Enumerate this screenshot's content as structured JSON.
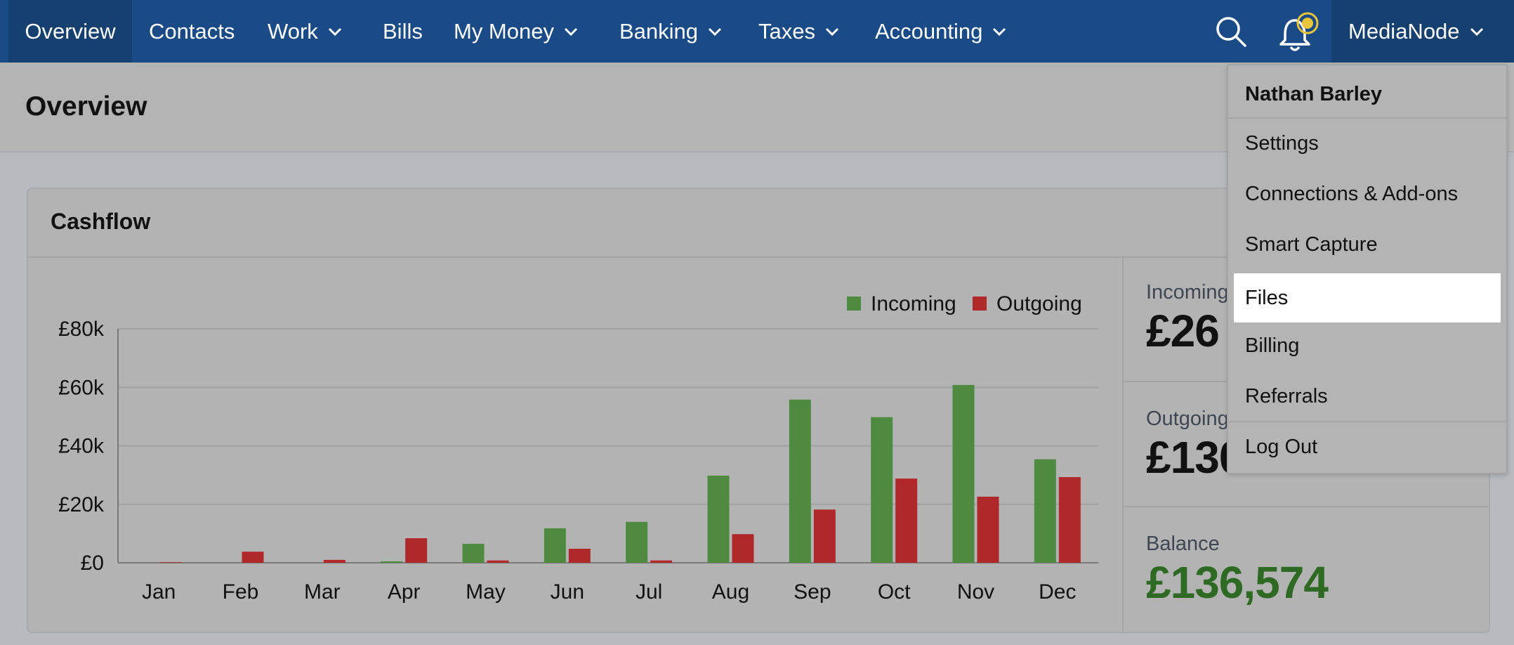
{
  "nav": {
    "items": [
      {
        "label": "Overview",
        "dropdown": false
      },
      {
        "label": "Contacts",
        "dropdown": false
      },
      {
        "label": "Work",
        "dropdown": true
      },
      {
        "label": "Bills",
        "dropdown": false
      },
      {
        "label": "My Money",
        "dropdown": true
      },
      {
        "label": "Banking",
        "dropdown": true
      },
      {
        "label": "Taxes",
        "dropdown": true
      },
      {
        "label": "Accounting",
        "dropdown": true
      }
    ],
    "company": "MediaNode",
    "icons": {
      "search": "search-icon",
      "notifications": "bell-icon"
    }
  },
  "page": {
    "title": "Overview"
  },
  "card": {
    "title": "Cashflow"
  },
  "summary": {
    "incoming": {
      "label": "Incoming",
      "value": "£26"
    },
    "outgoing": {
      "label": "Outgoing",
      "value": "£130"
    },
    "balance": {
      "label": "Balance",
      "value": "£136,574"
    }
  },
  "dropdown": {
    "user": "Nathan Barley",
    "items": [
      "Settings",
      "Connections & Add-ons",
      "Smart Capture",
      "Files",
      "Billing",
      "Referrals"
    ],
    "highlighted": "Files",
    "logout": "Log Out"
  },
  "colors": {
    "incoming": "#4e8b40",
    "outgoing": "#b0282a",
    "balance": "#2f6a24",
    "nav": "#1a4b86"
  },
  "chart_data": {
    "type": "bar",
    "categories": [
      "Jan",
      "Feb",
      "Mar",
      "Apr",
      "May",
      "Jun",
      "Jul",
      "Aug",
      "Sep",
      "Oct",
      "Nov",
      "Dec"
    ],
    "series": [
      {
        "name": "Incoming",
        "values": [
          0,
          0,
          0,
          500,
          6500,
          11800,
          14000,
          29800,
          55800,
          49800,
          60800,
          35400
        ]
      },
      {
        "name": "Outgoing",
        "values": [
          200,
          3800,
          1000,
          8400,
          800,
          4800,
          800,
          9800,
          18200,
          28800,
          22600,
          29300
        ]
      }
    ],
    "y_ticks": [
      "£0",
      "£20k",
      "£40k",
      "£60k",
      "£80k"
    ],
    "ylim": [
      0,
      80000
    ],
    "legend": "top-right",
    "grid": true
  }
}
